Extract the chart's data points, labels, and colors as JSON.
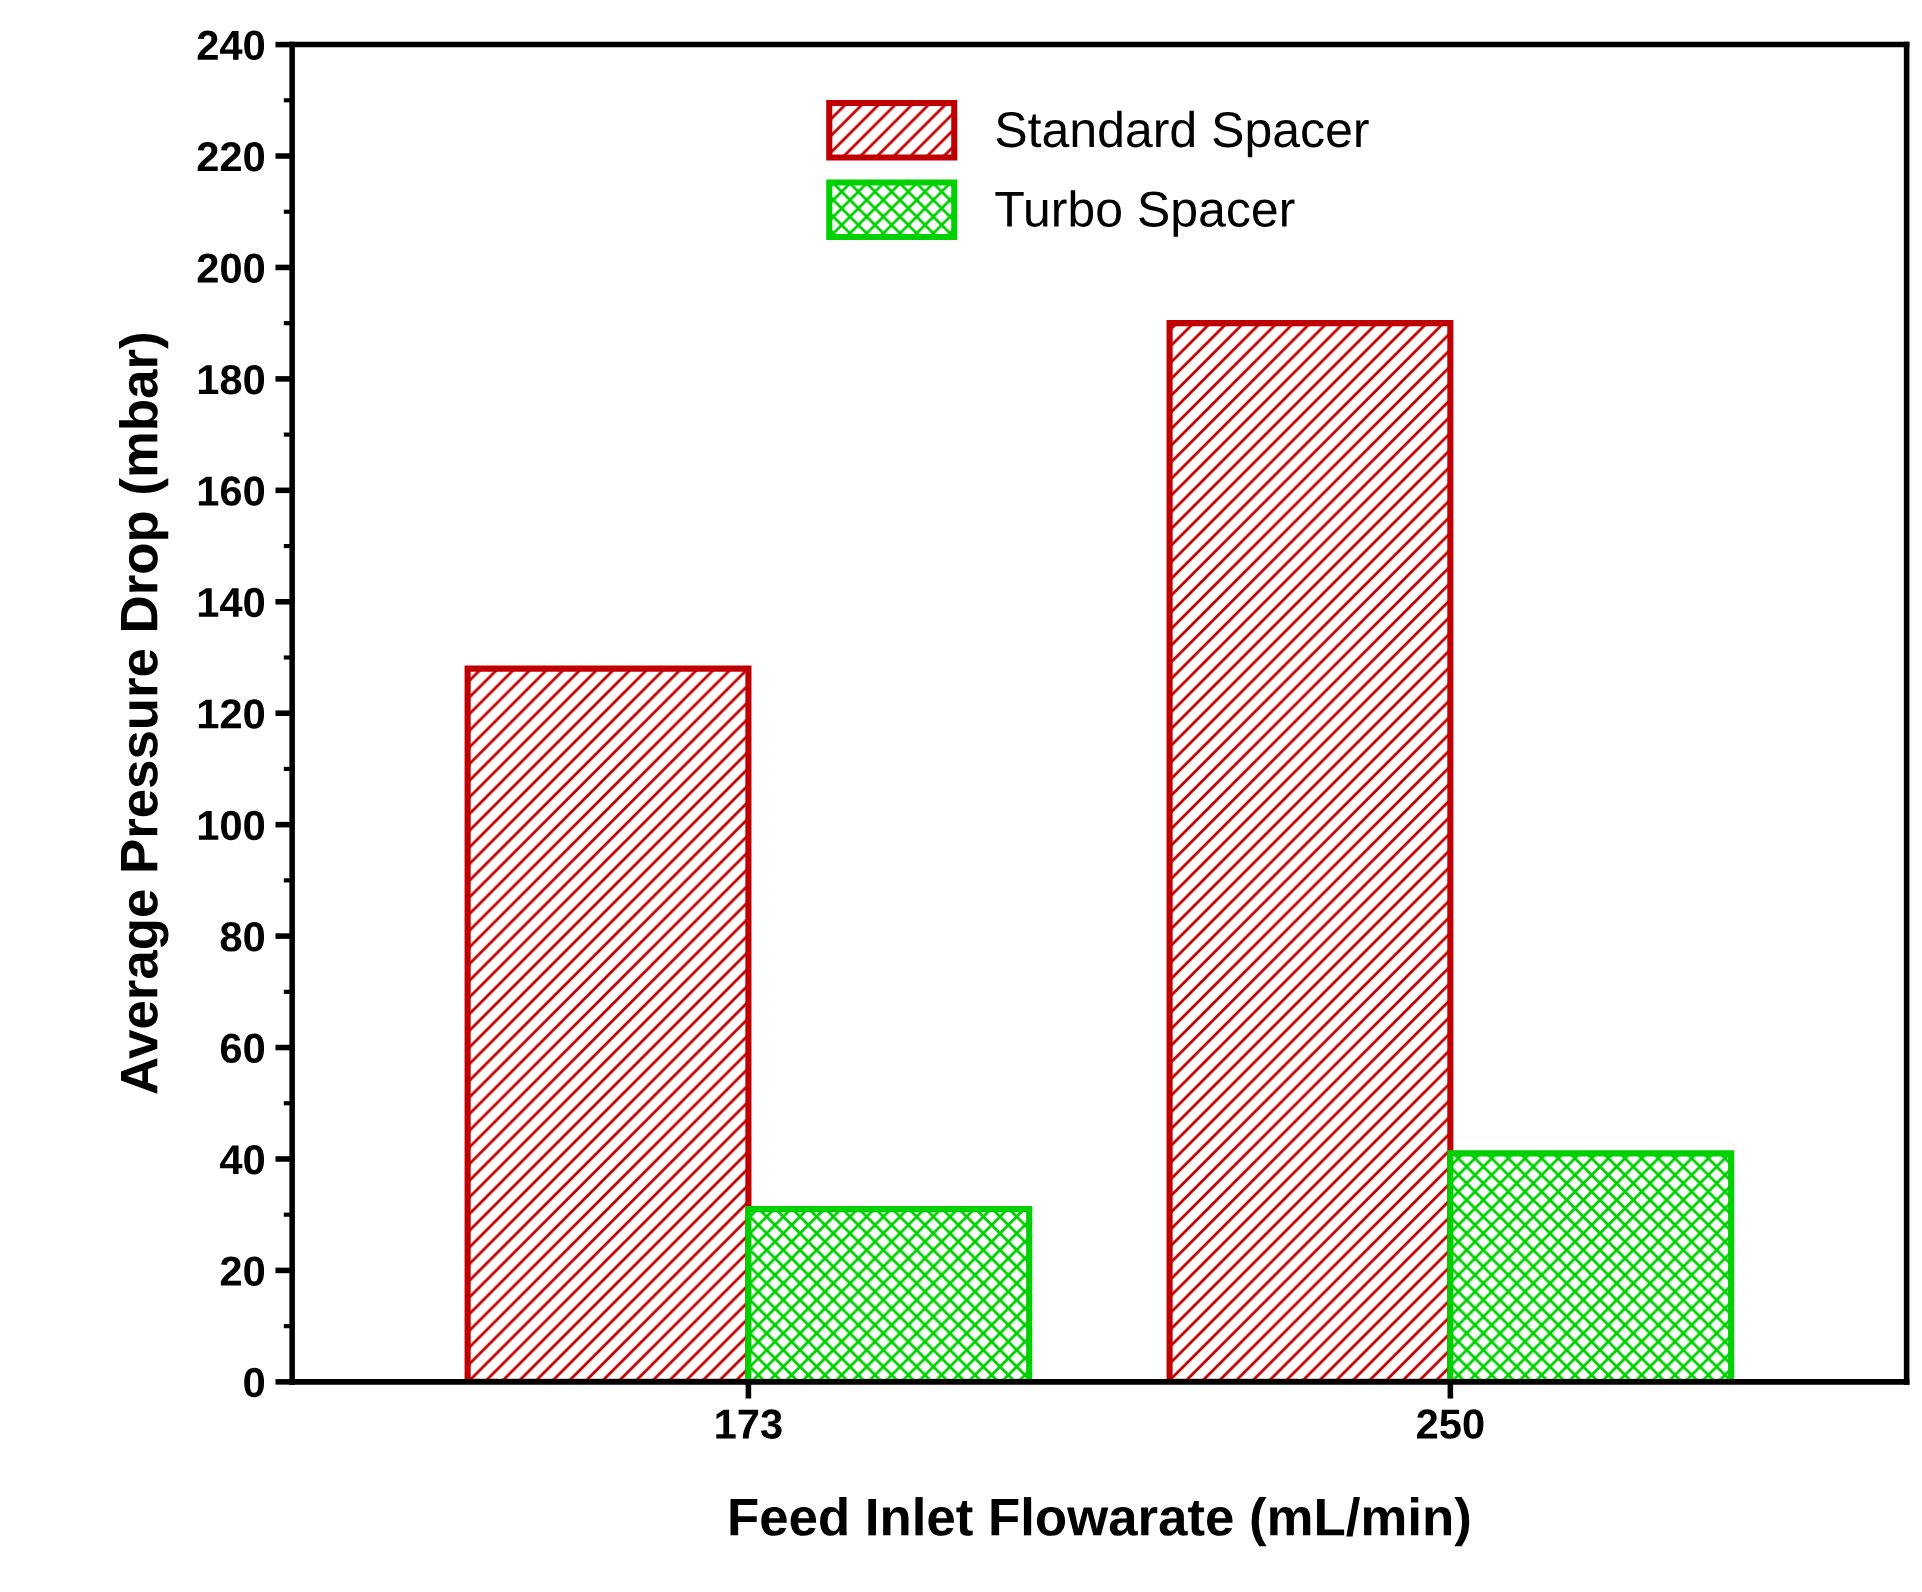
{
  "chart_data": {
    "type": "bar",
    "xlabel": "Feed Inlet Flowarate (mL/min)",
    "ylabel": "Average Pressure Drop (mbar)",
    "categories": [
      "173",
      "250"
    ],
    "series": [
      {
        "name": "Standard Spacer",
        "color": "#c00000",
        "values": [
          128,
          190
        ]
      },
      {
        "name": "Turbo Spacer",
        "color": "#00d000",
        "values": [
          31,
          41
        ]
      }
    ],
    "ylim": [
      0,
      240
    ],
    "yticks": [
      0,
      20,
      40,
      60,
      80,
      100,
      120,
      140,
      160,
      180,
      200,
      220,
      240
    ],
    "grid": false,
    "legend": "top"
  }
}
